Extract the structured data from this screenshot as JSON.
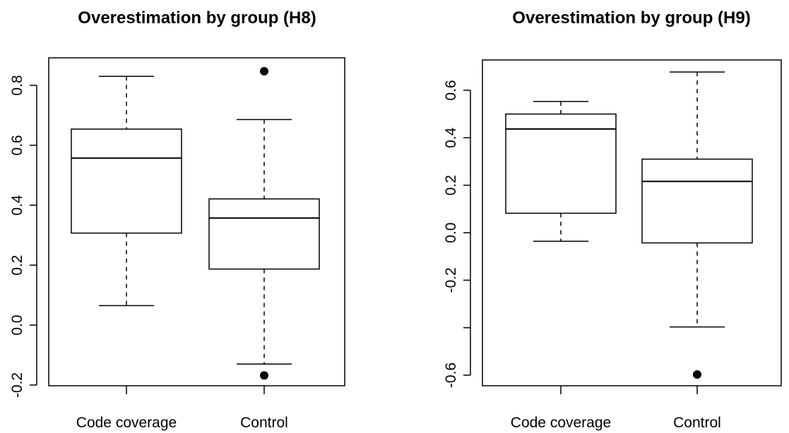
{
  "chart_data": [
    {
      "type": "boxplot",
      "title": "Overestimation by group (H8)",
      "xlabel": "",
      "ylabel": "",
      "categories": [
        "Code coverage",
        "Control"
      ],
      "ylim": [
        -0.2,
        0.8
      ],
      "yticks": [
        -0.2,
        0.0,
        0.2,
        0.4,
        0.6,
        0.8
      ],
      "ytick_labels": [
        "-0.2",
        "0.0",
        "0.2",
        "0.4",
        "0.6",
        "0.8"
      ],
      "grid": false,
      "boxes": [
        {
          "category": "Code coverage",
          "whisker_low": 0.065,
          "q1": 0.307,
          "median": 0.557,
          "q3": 0.654,
          "whisker_high": 0.83,
          "outliers": []
        },
        {
          "category": "Control",
          "whisker_low": -0.13,
          "q1": 0.187,
          "median": 0.357,
          "q3": 0.421,
          "whisker_high": 0.686,
          "outliers": [
            0.847,
            -0.168
          ]
        }
      ]
    },
    {
      "type": "boxplot",
      "title": "Overestimation by group (H9)",
      "xlabel": "",
      "ylabel": "",
      "categories": [
        "Code coverage",
        "Control"
      ],
      "ylim": [
        -0.6,
        0.6
      ],
      "yticks": [
        -0.6,
        -0.4,
        -0.2,
        0.0,
        0.2,
        0.4,
        0.6
      ],
      "ytick_labels": [
        "-0.6",
        "",
        "-0.2",
        "0.0",
        "0.2",
        "0.4",
        "0.6"
      ],
      "grid": false,
      "boxes": [
        {
          "category": "Code coverage",
          "whisker_low": -0.036,
          "q1": 0.082,
          "median": 0.437,
          "q3": 0.5,
          "whisker_high": 0.553,
          "outliers": []
        },
        {
          "category": "Control",
          "whisker_low": -0.397,
          "q1": -0.043,
          "median": 0.216,
          "q3": 0.31,
          "whisker_high": 0.677,
          "outliers": [
            -0.597
          ]
        }
      ]
    }
  ]
}
